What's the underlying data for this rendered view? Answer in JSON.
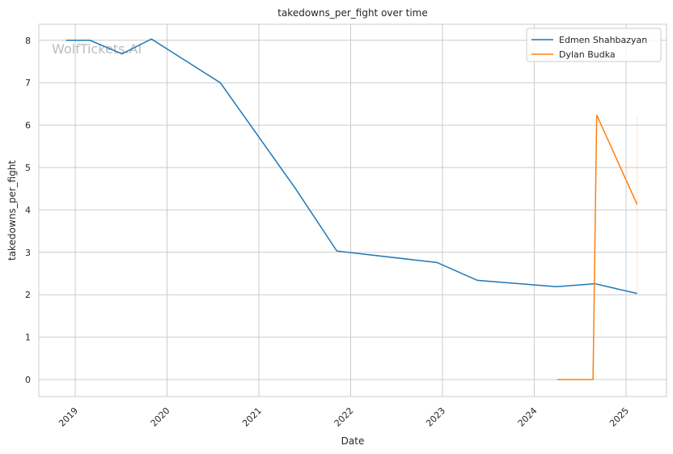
{
  "chart_data": {
    "type": "line",
    "title": "takedowns_per_fight over time",
    "xlabel": "Date",
    "ylabel": "takedowns_per_fight",
    "xlim": [
      2018.6,
      2025.42
    ],
    "ylim": [
      -0.4,
      8.4
    ],
    "xticks": [
      2019,
      2020,
      2021,
      2022,
      2023,
      2024,
      2025
    ],
    "xtick_labels": [
      "2019",
      "2020",
      "2021",
      "2022",
      "2023",
      "2024",
      "2025"
    ],
    "yticks": [
      0,
      1,
      2,
      3,
      4,
      5,
      6,
      7,
      8
    ],
    "ytick_labels": [
      "0",
      "1",
      "2",
      "3",
      "4",
      "5",
      "6",
      "7",
      "8"
    ],
    "grid": true,
    "legend_position": "top-right",
    "watermark": "WolfTickets.AI",
    "series": [
      {
        "name": "Edmen Shahbazyan",
        "color": "#1f77b4",
        "x": [
          2018.9,
          2019.16,
          2019.51,
          2019.83,
          2020.58,
          2021.4,
          2021.85,
          2022.94,
          2023.38,
          2024.24,
          2024.66,
          2025.12
        ],
        "y": [
          8.0,
          8.0,
          7.68,
          8.03,
          7.0,
          4.5,
          3.03,
          2.76,
          2.34,
          2.19,
          2.26,
          2.03
        ]
      },
      {
        "name": "Dylan Budka",
        "color": "#ff7f0e",
        "x": [
          2024.25,
          2024.64,
          2024.68,
          2025.12
        ],
        "y": [
          0,
          0,
          6.24,
          4.13
        ],
        "band": {
          "x": 2025.12,
          "low": 2.03,
          "high": 6.24
        }
      }
    ]
  }
}
